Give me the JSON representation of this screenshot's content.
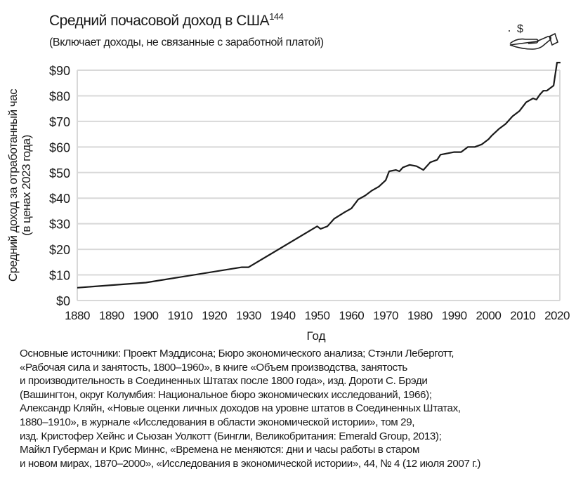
{
  "header": {
    "title": "Средний почасовой доход в США",
    "title_sup": "144",
    "subtitle": "(Включает доходы, не связанные с заработной платой)"
  },
  "icon": "hand-with-dollar-icon",
  "chart_data": {
    "type": "line",
    "title": "Средний почасовой доход в США",
    "xlabel": "Год",
    "ylabel": [
      "Средний доход за отработанный час",
      "(в ценах 2023 года)"
    ],
    "xlim": [
      1880,
      2022
    ],
    "ylim": [
      0,
      90
    ],
    "xticks": [
      1880,
      1890,
      1900,
      1910,
      1920,
      1930,
      1940,
      1950,
      1960,
      1970,
      1980,
      1990,
      2000,
      2010,
      2020
    ],
    "yticks": [
      0,
      10,
      20,
      30,
      40,
      50,
      60,
      70,
      80,
      90
    ],
    "ytick_labels": [
      "$0",
      "$10",
      "$20",
      "$30",
      "$40",
      "$50",
      "$60",
      "$70",
      "$80",
      "$90"
    ],
    "grid": true,
    "x": [
      1880,
      1900,
      1928,
      1930,
      1950,
      1951,
      1953,
      1955,
      1958,
      1960,
      1962,
      1964,
      1966,
      1968,
      1970,
      1971,
      1973,
      1974,
      1975,
      1977,
      1979,
      1981,
      1983,
      1985,
      1986,
      1988,
      1990,
      1992,
      1994,
      1996,
      1998,
      2000,
      2001,
      2003,
      2005,
      2007,
      2009,
      2011,
      2013,
      2014,
      2015,
      2016,
      2017,
      2019,
      2020,
      2021
    ],
    "values": [
      5,
      7,
      13,
      13,
      29,
      28,
      29,
      32,
      34.5,
      36,
      39.5,
      41,
      43,
      44.5,
      47,
      50.5,
      51,
      50.5,
      52,
      53,
      52.5,
      51,
      54,
      55,
      57,
      57.5,
      58,
      58,
      60,
      60,
      61,
      63,
      64.5,
      67,
      69,
      72,
      74,
      77.5,
      79,
      78.5,
      80.5,
      82,
      82,
      84,
      93,
      93
    ]
  },
  "sources": [
    "Основные источники: Проект Мэддисона; Бюро экономического анализа; Стэнли Леберготт,",
    "«Рабочая сила и занятость, 1800–1960», в книге «Объем производства, занятость",
    "и производительность в Соединенных Штатах после 1800 года», изд. Дороти С. Брэди",
    "(Вашингтон, округ Колумбия: Национальное бюро экономических исследований, 1966);",
    "Александр Кляйн, «Новые оценки личных доходов на уровне штатов в Соединенных Штатах,",
    "1880–1910», в журнале «Исследования в области экономической истории», том 29,",
    "изд. Кристофер Хейнс и Сьюзан Уолкотт (Бингли, Великобритания: Emerald Group, 2013);",
    "Майкл Губерман и Крис Миннс, «Времена не меняются: дни и часы работы в старом",
    "и новом мирах, 1870–2000», «Исследования в экономической истории», 44, № 4 (12 июля 2007 г.)"
  ]
}
